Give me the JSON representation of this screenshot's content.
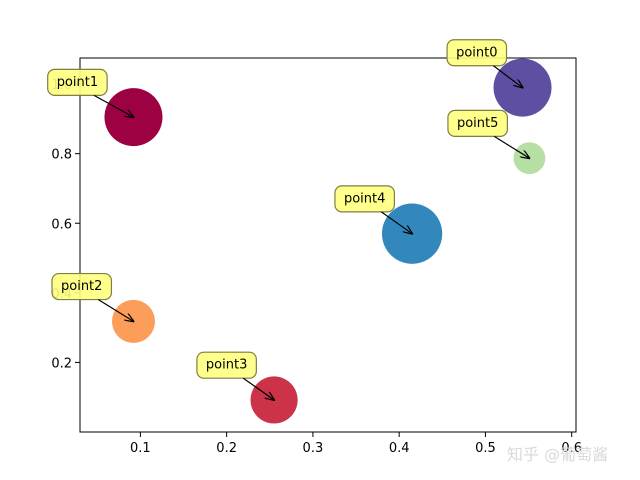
{
  "chart_data": {
    "type": "scatter",
    "title": "",
    "xlabel": "",
    "ylabel": "",
    "xlim": [
      0.03,
      0.605
    ],
    "ylim": [
      0.0,
      1.075
    ],
    "grid": false,
    "xticks": [
      0.1,
      0.2,
      0.3,
      0.4,
      0.5,
      0.6
    ],
    "xtick_labels": [
      "0.1",
      "0.2",
      "0.3",
      "0.4",
      "0.5",
      "0.6"
    ],
    "yticks": [
      0.2,
      0.4,
      0.6,
      0.8,
      1.0
    ],
    "ytick_labels": [
      "0.2",
      "0.4",
      "0.6",
      "0.8",
      "1.0"
    ],
    "points": [
      {
        "label": "point0",
        "x": 0.543,
        "y": 0.99,
        "size": 1.0,
        "color": "#5e4fa2",
        "label_dx": -0.053,
        "label_dy": 0.1
      },
      {
        "label": "point1",
        "x": 0.092,
        "y": 0.905,
        "size": 1.0,
        "color": "#9e0142",
        "label_dx": -0.065,
        "label_dy": 0.1
      },
      {
        "label": "point2",
        "x": 0.092,
        "y": 0.318,
        "size": 0.55,
        "color": "#fc9d5a",
        "label_dx": -0.06,
        "label_dy": 0.1
      },
      {
        "label": "point3",
        "x": 0.255,
        "y": 0.092,
        "size": 0.66,
        "color": "#cc3348",
        "label_dx": -0.055,
        "label_dy": 0.1
      },
      {
        "label": "point4",
        "x": 0.415,
        "y": 0.57,
        "size": 1.08,
        "color": "#3288bd",
        "label_dx": -0.055,
        "label_dy": 0.1
      },
      {
        "label": "point5",
        "x": 0.551,
        "y": 0.787,
        "size": 0.3,
        "color": "#b6dfa4",
        "label_dx": -0.06,
        "label_dy": 0.1
      }
    ]
  },
  "watermark": "知乎 @葡萄酱",
  "colors": {
    "label_box_fill": "#ffff80",
    "label_box_stroke": "#7f7f40",
    "axis": "#000000"
  }
}
